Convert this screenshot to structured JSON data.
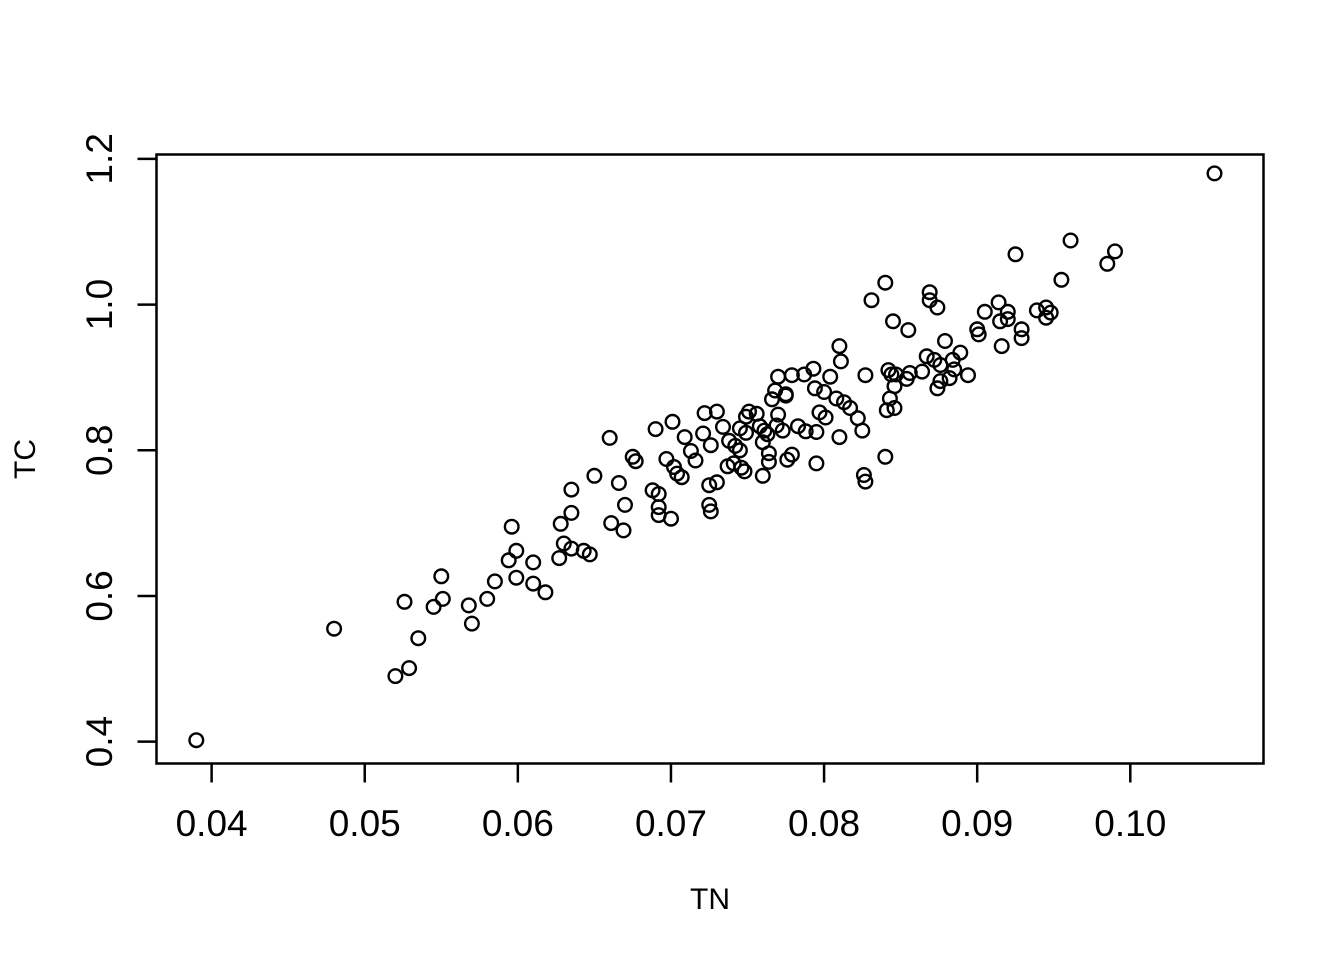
{
  "figure": {
    "background_color": "#ffffff",
    "foreground_color": "#000000"
  },
  "chart_data": {
    "type": "scatter",
    "title": "",
    "xlabel": "TN",
    "ylabel": "TC",
    "marker": "open-circle",
    "grid": false,
    "legend": null,
    "xlim": [
      0.0364,
      0.1087
    ],
    "ylim": [
      0.37,
      1.206
    ],
    "x_ticks": [
      0.04,
      0.05,
      0.06,
      0.07,
      0.08,
      0.09,
      0.1
    ],
    "x_tick_labels": [
      "0.04",
      "0.05",
      "0.06",
      "0.07",
      "0.08",
      "0.09",
      "0.10"
    ],
    "y_ticks": [
      0.4,
      0.6,
      0.8,
      1.0,
      1.2
    ],
    "y_tick_labels": [
      "0.4",
      "0.6",
      "0.8",
      "1.0",
      "1.2"
    ],
    "points": [
      [
        0.039,
        0.402
      ],
      [
        0.048,
        0.555
      ],
      [
        0.052,
        0.49
      ],
      [
        0.0529,
        0.501
      ],
      [
        0.0526,
        0.592
      ],
      [
        0.0535,
        0.542
      ],
      [
        0.055,
        0.627
      ],
      [
        0.0545,
        0.585
      ],
      [
        0.0551,
        0.596
      ],
      [
        0.0568,
        0.587
      ],
      [
        0.057,
        0.562
      ],
      [
        0.058,
        0.596
      ],
      [
        0.0585,
        0.62
      ],
      [
        0.0599,
        0.625
      ],
      [
        0.061,
        0.617
      ],
      [
        0.0618,
        0.605
      ],
      [
        0.0596,
        0.695
      ],
      [
        0.0599,
        0.662
      ],
      [
        0.0594,
        0.649
      ],
      [
        0.061,
        0.646
      ],
      [
        0.0627,
        0.652
      ],
      [
        0.063,
        0.672
      ],
      [
        0.0635,
        0.665
      ],
      [
        0.0643,
        0.662
      ],
      [
        0.0647,
        0.657
      ],
      [
        0.0628,
        0.699
      ],
      [
        0.0635,
        0.714
      ],
      [
        0.065,
        0.765
      ],
      [
        0.0635,
        0.746
      ],
      [
        0.0661,
        0.7
      ],
      [
        0.0669,
        0.69
      ],
      [
        0.067,
        0.725
      ],
      [
        0.0666,
        0.755
      ],
      [
        0.066,
        0.817
      ],
      [
        0.0675,
        0.791
      ],
      [
        0.0677,
        0.785
      ],
      [
        0.0688,
        0.745
      ],
      [
        0.0692,
        0.74
      ],
      [
        0.0692,
        0.722
      ],
      [
        0.0692,
        0.711
      ],
      [
        0.07,
        0.706
      ],
      [
        0.069,
        0.829
      ],
      [
        0.0701,
        0.839
      ],
      [
        0.0697,
        0.788
      ],
      [
        0.0702,
        0.777
      ],
      [
        0.0704,
        0.768
      ],
      [
        0.0707,
        0.763
      ],
      [
        0.0709,
        0.818
      ],
      [
        0.0713,
        0.799
      ],
      [
        0.0716,
        0.786
      ],
      [
        0.0721,
        0.823
      ],
      [
        0.0722,
        0.851
      ],
      [
        0.073,
        0.853
      ],
      [
        0.0726,
        0.807
      ],
      [
        0.0734,
        0.832
      ],
      [
        0.0725,
        0.752
      ],
      [
        0.073,
        0.756
      ],
      [
        0.0725,
        0.725
      ],
      [
        0.0726,
        0.716
      ],
      [
        0.0737,
        0.778
      ],
      [
        0.0741,
        0.782
      ],
      [
        0.0746,
        0.776
      ],
      [
        0.0748,
        0.771
      ],
      [
        0.0738,
        0.813
      ],
      [
        0.0742,
        0.806
      ],
      [
        0.0745,
        0.8
      ],
      [
        0.0745,
        0.83
      ],
      [
        0.0749,
        0.824
      ],
      [
        0.0749,
        0.846
      ],
      [
        0.0751,
        0.853
      ],
      [
        0.0756,
        0.85
      ],
      [
        0.0758,
        0.833
      ],
      [
        0.0761,
        0.827
      ],
      [
        0.0763,
        0.822
      ],
      [
        0.076,
        0.811
      ],
      [
        0.0769,
        0.834
      ],
      [
        0.0773,
        0.827
      ],
      [
        0.077,
        0.849
      ],
      [
        0.0775,
        0.875
      ],
      [
        0.0768,
        0.882
      ],
      [
        0.0766,
        0.87
      ],
      [
        0.0775,
        0.877
      ],
      [
        0.0764,
        0.796
      ],
      [
        0.0764,
        0.784
      ],
      [
        0.076,
        0.765
      ],
      [
        0.0776,
        0.787
      ],
      [
        0.0779,
        0.794
      ],
      [
        0.0795,
        0.782
      ],
      [
        0.0783,
        0.833
      ],
      [
        0.0788,
        0.826
      ],
      [
        0.0797,
        0.852
      ],
      [
        0.0801,
        0.845
      ],
      [
        0.0794,
        0.885
      ],
      [
        0.08,
        0.88
      ],
      [
        0.0808,
        0.871
      ],
      [
        0.0813,
        0.866
      ],
      [
        0.0817,
        0.858
      ],
      [
        0.0822,
        0.844
      ],
      [
        0.0825,
        0.827
      ],
      [
        0.081,
        0.818
      ],
      [
        0.0841,
        0.855
      ],
      [
        0.0843,
        0.871
      ],
      [
        0.0826,
        0.766
      ],
      [
        0.0827,
        0.757
      ],
      [
        0.084,
        0.791
      ],
      [
        0.0795,
        0.825
      ],
      [
        0.084,
        1.03
      ],
      [
        0.0831,
        1.006
      ],
      [
        0.0845,
        0.977
      ],
      [
        0.0855,
        0.965
      ],
      [
        0.081,
        0.943
      ],
      [
        0.0811,
        0.922
      ],
      [
        0.077,
        0.901
      ],
      [
        0.0779,
        0.903
      ],
      [
        0.0787,
        0.904
      ],
      [
        0.0793,
        0.912
      ],
      [
        0.0804,
        0.901
      ],
      [
        0.0827,
        0.903
      ],
      [
        0.0842,
        0.91
      ],
      [
        0.0844,
        0.904
      ],
      [
        0.0847,
        0.904
      ],
      [
        0.0854,
        0.898
      ],
      [
        0.0856,
        0.906
      ],
      [
        0.0864,
        0.908
      ],
      [
        0.1055,
        1.18
      ],
      [
        0.0961,
        1.088
      ],
      [
        0.0925,
        1.069
      ],
      [
        0.0955,
        1.034
      ],
      [
        0.099,
        1.073
      ],
      [
        0.0985,
        1.056
      ],
      [
        0.0869,
        1.017
      ],
      [
        0.0869,
        1.006
      ],
      [
        0.0874,
        0.996
      ],
      [
        0.0914,
        1.003
      ],
      [
        0.092,
        0.99
      ],
      [
        0.092,
        0.98
      ],
      [
        0.0905,
        0.99
      ],
      [
        0.0915,
        0.977
      ],
      [
        0.09,
        0.966
      ],
      [
        0.0901,
        0.959
      ],
      [
        0.0879,
        0.95
      ],
      [
        0.0889,
        0.934
      ],
      [
        0.0867,
        0.929
      ],
      [
        0.0872,
        0.924
      ],
      [
        0.0876,
        0.917
      ],
      [
        0.0884,
        0.924
      ],
      [
        0.0885,
        0.911
      ],
      [
        0.0876,
        0.895
      ],
      [
        0.0894,
        0.903
      ],
      [
        0.0882,
        0.899
      ],
      [
        0.0916,
        0.943
      ],
      [
        0.0929,
        0.966
      ],
      [
        0.0929,
        0.954
      ],
      [
        0.0945,
        0.996
      ],
      [
        0.0948,
        0.989
      ],
      [
        0.0945,
        0.982
      ],
      [
        0.0939,
        0.992
      ],
      [
        0.0846,
        0.888
      ],
      [
        0.0874,
        0.885
      ],
      [
        0.0846,
        0.858
      ]
    ]
  }
}
